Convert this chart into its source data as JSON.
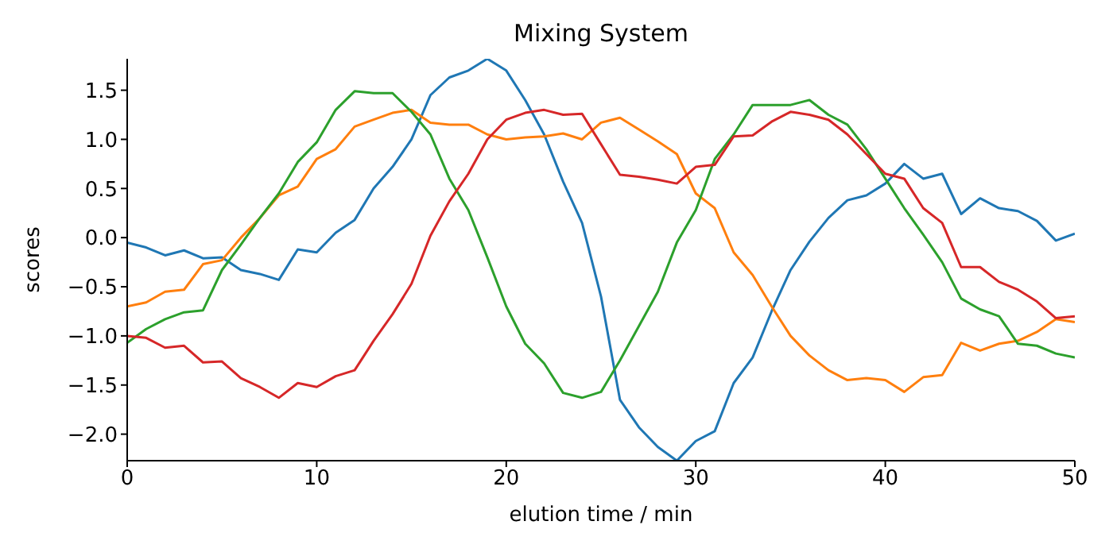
{
  "chart_data": {
    "type": "line",
    "title": "Mixing System",
    "xlabel": "elution time / min",
    "ylabel": "scores",
    "x": [
      0,
      1,
      2,
      3,
      4,
      5,
      6,
      7,
      8,
      9,
      10,
      11,
      12,
      13,
      14,
      15,
      16,
      17,
      18,
      19,
      20,
      21,
      22,
      23,
      24,
      25,
      26,
      27,
      28,
      29,
      30,
      31,
      32,
      33,
      34,
      35,
      36,
      37,
      38,
      39,
      40,
      41,
      42,
      43,
      44,
      45,
      46,
      47,
      48,
      49,
      50
    ],
    "series": [
      {
        "color": "#1f77b4",
        "values": [
          -0.05,
          -0.1,
          -0.18,
          -0.13,
          -0.21,
          -0.2,
          -0.33,
          -0.37,
          -0.43,
          -0.12,
          -0.15,
          0.05,
          0.18,
          0.5,
          0.72,
          1.0,
          1.45,
          1.63,
          1.7,
          1.82,
          1.7,
          1.4,
          1.05,
          0.57,
          0.15,
          -0.6,
          -1.65,
          -1.93,
          -2.13,
          -2.27,
          -2.07,
          -1.97,
          -1.48,
          -1.22,
          -0.75,
          -0.33,
          -0.04,
          0.2,
          0.38,
          0.43,
          0.55,
          0.75,
          0.6,
          0.65,
          0.24,
          0.4,
          0.3,
          0.27,
          0.17,
          -0.03,
          0.04
        ]
      },
      {
        "color": "#ff7f0e",
        "values": [
          -0.7,
          -0.66,
          -0.55,
          -0.53,
          -0.27,
          -0.23,
          0.0,
          0.2,
          0.43,
          0.52,
          0.8,
          0.9,
          1.13,
          1.2,
          1.27,
          1.3,
          1.17,
          1.15,
          1.15,
          1.05,
          1.0,
          1.02,
          1.03,
          1.06,
          1.0,
          1.17,
          1.22,
          1.1,
          0.98,
          0.85,
          0.45,
          0.3,
          -0.15,
          -0.38,
          -0.7,
          -1.0,
          -1.2,
          -1.35,
          -1.45,
          -1.43,
          -1.45,
          -1.57,
          -1.42,
          -1.4,
          -1.07,
          -1.15,
          -1.08,
          -1.05,
          -0.96,
          -0.83,
          -0.86
        ]
      },
      {
        "color": "#2ca02c",
        "values": [
          -1.07,
          -0.93,
          -0.83,
          -0.76,
          -0.74,
          -0.33,
          -0.07,
          0.2,
          0.45,
          0.77,
          0.97,
          1.3,
          1.49,
          1.47,
          1.47,
          1.28,
          1.05,
          0.6,
          0.28,
          -0.2,
          -0.7,
          -1.08,
          -1.28,
          -1.58,
          -1.63,
          -1.57,
          -1.25,
          -0.9,
          -0.55,
          -0.05,
          0.28,
          0.8,
          1.05,
          1.35,
          1.35,
          1.35,
          1.4,
          1.25,
          1.15,
          0.9,
          0.6,
          0.3,
          0.03,
          -0.25,
          -0.62,
          -0.73,
          -0.8,
          -1.08,
          -1.1,
          -1.18,
          -1.22
        ]
      },
      {
        "color": "#d62728",
        "values": [
          -1.0,
          -1.02,
          -1.12,
          -1.1,
          -1.27,
          -1.26,
          -1.43,
          -1.52,
          -1.63,
          -1.48,
          -1.52,
          -1.41,
          -1.35,
          -1.05,
          -0.78,
          -0.47,
          0.02,
          0.37,
          0.65,
          1.0,
          1.2,
          1.27,
          1.3,
          1.25,
          1.26,
          0.95,
          0.64,
          0.62,
          0.59,
          0.55,
          0.72,
          0.74,
          1.03,
          1.04,
          1.18,
          1.28,
          1.25,
          1.2,
          1.05,
          0.85,
          0.65,
          0.6,
          0.3,
          0.15,
          -0.3,
          -0.3,
          -0.45,
          -0.53,
          -0.65,
          -0.82,
          -0.8
        ]
      }
    ],
    "xlim": [
      0,
      50
    ],
    "xticks": [
      0,
      10,
      20,
      30,
      40,
      50
    ],
    "ylim": [
      -2.27,
      1.82
    ],
    "yticks": [
      {
        "value": -2,
        "label": "−2.0"
      },
      {
        "value": -1.5,
        "label": "−1.5"
      },
      {
        "value": -1,
        "label": "−1.0"
      },
      {
        "value": -0.5,
        "label": "−0.5"
      },
      {
        "value": 0,
        "label": "0.0"
      },
      {
        "value": 0.5,
        "label": "0.5"
      },
      {
        "value": 1,
        "label": "1.0"
      },
      {
        "value": 1.5,
        "label": "1.5"
      }
    ],
    "grid": false,
    "legend": false,
    "marker": "none",
    "line_style": "solid"
  }
}
